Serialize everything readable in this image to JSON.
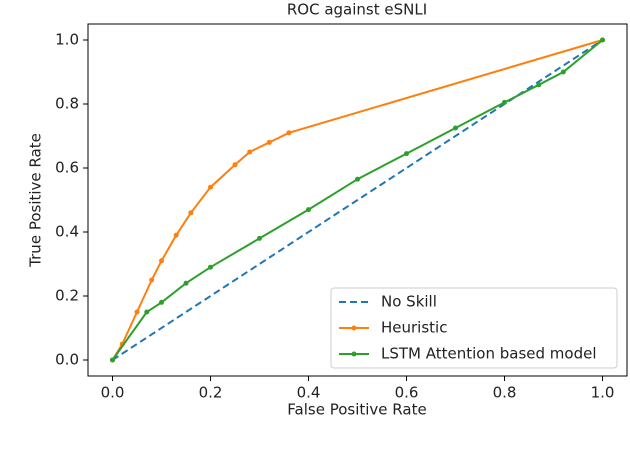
{
  "chart_data": {
    "type": "line",
    "title": "ROC against eSNLI",
    "x_label": "False Positive Rate",
    "y_label": "True Positive Rate",
    "xlim": [
      -0.05,
      1.05
    ],
    "ylim": [
      -0.05,
      1.05
    ],
    "xticks": [
      {
        "value": 0,
        "label": "0.0"
      },
      0.2,
      0.4,
      0.6,
      0.8,
      {
        "value": 1,
        "label": "1.0"
      }
    ],
    "yticks": [
      {
        "value": 0,
        "label": "0.0"
      },
      0.2,
      0.4,
      0.6,
      0.8,
      {
        "value": 1,
        "label": "1.0"
      }
    ],
    "legend": "lower right",
    "series": [
      {
        "name": "No Skill",
        "color": "#1f77b4",
        "style": "dashed",
        "markers": false,
        "x": [
          0,
          1
        ],
        "values": [
          0,
          1
        ]
      },
      {
        "name": "Heuristic",
        "color": "#ff7f0e",
        "style": "solid",
        "markers": true,
        "x": [
          0,
          0.02,
          0.05,
          0.08,
          0.1,
          0.13,
          0.16,
          0.2,
          0.25,
          0.28,
          0.32,
          0.36,
          1
        ],
        "values": [
          0,
          0.05,
          0.15,
          0.25,
          0.31,
          0.39,
          0.46,
          0.54,
          0.61,
          0.65,
          0.68,
          0.71,
          1
        ]
      },
      {
        "name": "LSTM Attention based model",
        "color": "#2ca02c",
        "style": "solid",
        "markers": true,
        "x": [
          0,
          0.07,
          0.1,
          0.15,
          0.2,
          0.3,
          0.4,
          0.5,
          0.6,
          0.7,
          0.8,
          0.87,
          0.92,
          1
        ],
        "values": [
          0,
          0.15,
          0.18,
          0.24,
          0.29,
          0.38,
          0.47,
          0.565,
          0.645,
          0.725,
          0.805,
          0.86,
          0.9,
          1
        ]
      }
    ]
  }
}
